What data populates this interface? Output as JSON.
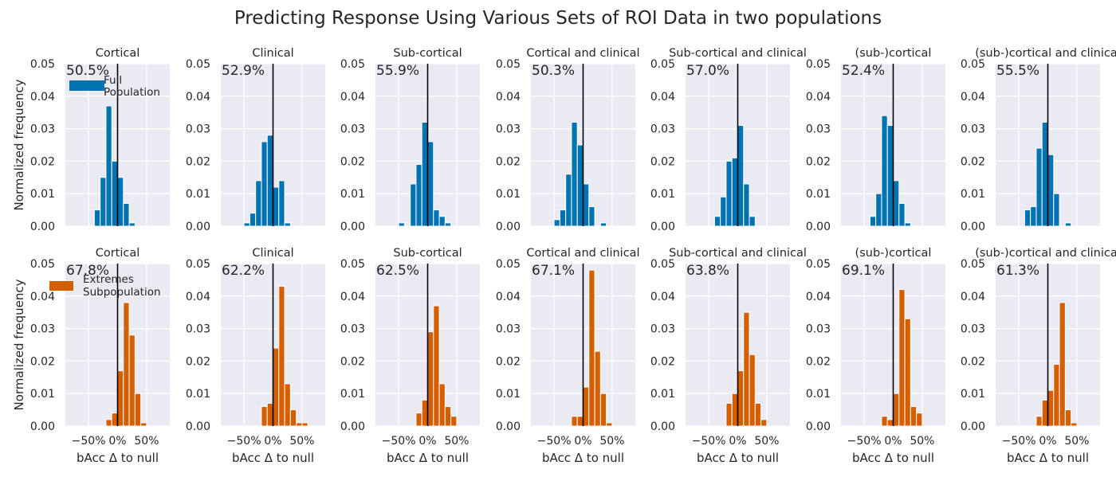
{
  "figure": {
    "title": "Predicting Response Using Various Sets of ROI Data in two populations"
  },
  "colors": {
    "background": "#eaeaf2",
    "grid": "#ffffff",
    "full_population": "#0173b2",
    "extremes_subpopulation": "#d55e00",
    "null_line": "#000000",
    "text": "#262626"
  },
  "chart_data": [
    {
      "type": "bar",
      "row": "Full Population",
      "title": "Cortical",
      "accuracy_label": "50.5%",
      "legend_entry": "Full Population",
      "ylabel": "Normalized frequency",
      "xlabel": "",
      "ylim": [
        0,
        0.05
      ],
      "xlim": [
        -90,
        90
      ],
      "yticks": [
        "0.00",
        "0.01",
        "0.02",
        "0.03",
        "0.04",
        "0.05"
      ],
      "xticks": [],
      "null_line_x": 0,
      "bins": [
        {
          "x0": -40,
          "x1": -30,
          "v": 0.005
        },
        {
          "x0": -30,
          "x1": -20,
          "v": 0.015
        },
        {
          "x0": -20,
          "x1": -10,
          "v": 0.037
        },
        {
          "x0": -10,
          "x1": 0,
          "v": 0.02
        },
        {
          "x0": 0,
          "x1": 10,
          "v": 0.015
        },
        {
          "x0": 10,
          "x1": 20,
          "v": 0.007
        },
        {
          "x0": 20,
          "x1": 30,
          "v": 0.001
        }
      ]
    },
    {
      "type": "bar",
      "row": "Full Population",
      "title": "Clinical",
      "accuracy_label": "52.9%",
      "ylim": [
        0,
        0.05
      ],
      "xlim": [
        -90,
        90
      ],
      "yticks": [
        "0.00",
        "0.01",
        "0.02",
        "0.03",
        "0.04",
        "0.05"
      ],
      "xticks": [],
      "null_line_x": 0,
      "bins": [
        {
          "x0": -50,
          "x1": -40,
          "v": 0.001
        },
        {
          "x0": -40,
          "x1": -30,
          "v": 0.004
        },
        {
          "x0": -30,
          "x1": -20,
          "v": 0.014
        },
        {
          "x0": -20,
          "x1": -10,
          "v": 0.026
        },
        {
          "x0": -10,
          "x1": 0,
          "v": 0.028
        },
        {
          "x0": 0,
          "x1": 10,
          "v": 0.012
        },
        {
          "x0": 10,
          "x1": 20,
          "v": 0.014
        },
        {
          "x0": 20,
          "x1": 30,
          "v": 0.001
        }
      ]
    },
    {
      "type": "bar",
      "row": "Full Population",
      "title": "Sub-cortical",
      "accuracy_label": "55.9%",
      "ylim": [
        0,
        0.05
      ],
      "xlim": [
        -90,
        90
      ],
      "yticks": [
        "0.00",
        "0.01",
        "0.02",
        "0.03",
        "0.04",
        "0.05"
      ],
      "xticks": [],
      "null_line_x": 0,
      "bins": [
        {
          "x0": -50,
          "x1": -40,
          "v": 0.001
        },
        {
          "x0": -30,
          "x1": -20,
          "v": 0.013
        },
        {
          "x0": -20,
          "x1": -10,
          "v": 0.019
        },
        {
          "x0": -10,
          "x1": 0,
          "v": 0.032
        },
        {
          "x0": 0,
          "x1": 10,
          "v": 0.026
        },
        {
          "x0": 10,
          "x1": 20,
          "v": 0.005
        },
        {
          "x0": 20,
          "x1": 30,
          "v": 0.003
        },
        {
          "x0": 30,
          "x1": 40,
          "v": 0.001
        }
      ]
    },
    {
      "type": "bar",
      "row": "Full Population",
      "title": "Cortical and clinical",
      "accuracy_label": "50.3%",
      "ylim": [
        0,
        0.05
      ],
      "xlim": [
        -90,
        90
      ],
      "yticks": [
        "0.00",
        "0.01",
        "0.02",
        "0.03",
        "0.04",
        "0.05"
      ],
      "xticks": [],
      "null_line_x": 0,
      "bins": [
        {
          "x0": -50,
          "x1": -40,
          "v": 0.002
        },
        {
          "x0": -40,
          "x1": -30,
          "v": 0.005
        },
        {
          "x0": -30,
          "x1": -20,
          "v": 0.016
        },
        {
          "x0": -20,
          "x1": -10,
          "v": 0.032
        },
        {
          "x0": -10,
          "x1": 0,
          "v": 0.025
        },
        {
          "x0": 0,
          "x1": 10,
          "v": 0.013
        },
        {
          "x0": 10,
          "x1": 20,
          "v": 0.006
        },
        {
          "x0": 30,
          "x1": 40,
          "v": 0.001
        }
      ]
    },
    {
      "type": "bar",
      "row": "Full Population",
      "title": "Sub-cortical and clinical",
      "accuracy_label": "57.0%",
      "ylim": [
        0,
        0.05
      ],
      "xlim": [
        -90,
        90
      ],
      "yticks": [
        "0.00",
        "0.01",
        "0.02",
        "0.03",
        "0.04",
        "0.05"
      ],
      "xticks": [],
      "null_line_x": 0,
      "bins": [
        {
          "x0": -40,
          "x1": -30,
          "v": 0.003
        },
        {
          "x0": -30,
          "x1": -20,
          "v": 0.009
        },
        {
          "x0": -20,
          "x1": -10,
          "v": 0.02
        },
        {
          "x0": -10,
          "x1": 0,
          "v": 0.021
        },
        {
          "x0": 0,
          "x1": 10,
          "v": 0.031
        },
        {
          "x0": 10,
          "x1": 20,
          "v": 0.013
        },
        {
          "x0": 20,
          "x1": 30,
          "v": 0.003
        }
      ]
    },
    {
      "type": "bar",
      "row": "Full Population",
      "title": "(sub-)cortical",
      "accuracy_label": "52.4%",
      "ylim": [
        0,
        0.05
      ],
      "xlim": [
        -90,
        90
      ],
      "yticks": [
        "0.00",
        "0.01",
        "0.02",
        "0.03",
        "0.04",
        "0.05"
      ],
      "xticks": [],
      "null_line_x": 0,
      "bins": [
        {
          "x0": -40,
          "x1": -30,
          "v": 0.003
        },
        {
          "x0": -30,
          "x1": -20,
          "v": 0.01
        },
        {
          "x0": -20,
          "x1": -10,
          "v": 0.034
        },
        {
          "x0": -10,
          "x1": 0,
          "v": 0.031
        },
        {
          "x0": 0,
          "x1": 10,
          "v": 0.014
        },
        {
          "x0": 10,
          "x1": 20,
          "v": 0.007
        },
        {
          "x0": 20,
          "x1": 30,
          "v": 0.001
        }
      ]
    },
    {
      "type": "bar",
      "row": "Full Population",
      "title": "(sub-)cortical and clinical",
      "accuracy_label": "55.5%",
      "ylim": [
        0,
        0.05
      ],
      "xlim": [
        -90,
        90
      ],
      "yticks": [
        "0.00",
        "0.01",
        "0.02",
        "0.03",
        "0.04",
        "0.05"
      ],
      "xticks": [],
      "null_line_x": 0,
      "bins": [
        {
          "x0": -40,
          "x1": -30,
          "v": 0.005
        },
        {
          "x0": -30,
          "x1": -20,
          "v": 0.006
        },
        {
          "x0": -20,
          "x1": -10,
          "v": 0.024
        },
        {
          "x0": -10,
          "x1": 0,
          "v": 0.032
        },
        {
          "x0": 0,
          "x1": 10,
          "v": 0.022
        },
        {
          "x0": 10,
          "x1": 20,
          "v": 0.01
        },
        {
          "x0": 30,
          "x1": 40,
          "v": 0.001
        }
      ]
    },
    {
      "type": "bar",
      "row": "Extremes Subpopulation",
      "title": "Cortical",
      "accuracy_label": "67.8%",
      "legend_entry": "Extremes Subpopulation",
      "ylabel": "Normalized frequency",
      "xlabel": "bAcc Δ to null",
      "ylim": [
        0,
        0.05
      ],
      "xlim": [
        -90,
        90
      ],
      "yticks": [
        "0.00",
        "0.01",
        "0.02",
        "0.03",
        "0.04",
        "0.05"
      ],
      "xticks": [
        {
          "x": -50,
          "label": "−50%"
        },
        {
          "x": 0,
          "label": "0%"
        },
        {
          "x": 50,
          "label": "50%"
        }
      ],
      "null_line_x": 0,
      "bins": [
        {
          "x0": -20,
          "x1": -10,
          "v": 0.002
        },
        {
          "x0": -10,
          "x1": 0,
          "v": 0.004
        },
        {
          "x0": 0,
          "x1": 10,
          "v": 0.017
        },
        {
          "x0": 10,
          "x1": 20,
          "v": 0.038
        },
        {
          "x0": 20,
          "x1": 30,
          "v": 0.028
        },
        {
          "x0": 30,
          "x1": 40,
          "v": 0.01
        },
        {
          "x0": 40,
          "x1": 50,
          "v": 0.001
        }
      ]
    },
    {
      "type": "bar",
      "row": "Extremes Subpopulation",
      "title": "Clinical",
      "accuracy_label": "62.2%",
      "xlabel": "bAcc Δ to null",
      "ylim": [
        0,
        0.05
      ],
      "xlim": [
        -90,
        90
      ],
      "yticks": [
        "0.00",
        "0.01",
        "0.02",
        "0.03",
        "0.04",
        "0.05"
      ],
      "xticks": [
        {
          "x": -50,
          "label": "−50%"
        },
        {
          "x": 0,
          "label": "0%"
        },
        {
          "x": 50,
          "label": "50%"
        }
      ],
      "null_line_x": 0,
      "bins": [
        {
          "x0": -20,
          "x1": -10,
          "v": 0.006
        },
        {
          "x0": -10,
          "x1": 0,
          "v": 0.007
        },
        {
          "x0": 0,
          "x1": 10,
          "v": 0.024
        },
        {
          "x0": 10,
          "x1": 20,
          "v": 0.043
        },
        {
          "x0": 20,
          "x1": 30,
          "v": 0.013
        },
        {
          "x0": 30,
          "x1": 40,
          "v": 0.005
        },
        {
          "x0": 40,
          "x1": 50,
          "v": 0.001
        },
        {
          "x0": 50,
          "x1": 60,
          "v": 0.001
        }
      ]
    },
    {
      "type": "bar",
      "row": "Extremes Subpopulation",
      "title": "Sub-cortical",
      "accuracy_label": "62.5%",
      "xlabel": "bAcc Δ to null",
      "ylim": [
        0,
        0.05
      ],
      "xlim": [
        -90,
        90
      ],
      "yticks": [
        "0.00",
        "0.01",
        "0.02",
        "0.03",
        "0.04",
        "0.05"
      ],
      "xticks": [
        {
          "x": -50,
          "label": "−50%"
        },
        {
          "x": 0,
          "label": "0%"
        },
        {
          "x": 50,
          "label": "50%"
        }
      ],
      "null_line_x": 0,
      "bins": [
        {
          "x0": -20,
          "x1": -10,
          "v": 0.004
        },
        {
          "x0": -10,
          "x1": 0,
          "v": 0.008
        },
        {
          "x0": 0,
          "x1": 10,
          "v": 0.029
        },
        {
          "x0": 10,
          "x1": 20,
          "v": 0.037
        },
        {
          "x0": 20,
          "x1": 30,
          "v": 0.013
        },
        {
          "x0": 30,
          "x1": 40,
          "v": 0.006
        },
        {
          "x0": 40,
          "x1": 50,
          "v": 0.003
        }
      ]
    },
    {
      "type": "bar",
      "row": "Extremes Subpopulation",
      "title": "Cortical and clinical",
      "accuracy_label": "67.1%",
      "xlabel": "bAcc Δ to null",
      "ylim": [
        0,
        0.05
      ],
      "xlim": [
        -90,
        90
      ],
      "yticks": [
        "0.00",
        "0.01",
        "0.02",
        "0.03",
        "0.04",
        "0.05"
      ],
      "xticks": [
        {
          "x": -50,
          "label": "−50%"
        },
        {
          "x": 0,
          "label": "0%"
        },
        {
          "x": 50,
          "label": "50%"
        }
      ],
      "null_line_x": 0,
      "bins": [
        {
          "x0": -20,
          "x1": -10,
          "v": 0.003
        },
        {
          "x0": -10,
          "x1": 0,
          "v": 0.003
        },
        {
          "x0": 0,
          "x1": 10,
          "v": 0.012
        },
        {
          "x0": 10,
          "x1": 20,
          "v": 0.048
        },
        {
          "x0": 20,
          "x1": 30,
          "v": 0.023
        },
        {
          "x0": 30,
          "x1": 40,
          "v": 0.01
        },
        {
          "x0": 40,
          "x1": 50,
          "v": 0.001
        }
      ]
    },
    {
      "type": "bar",
      "row": "Extremes Subpopulation",
      "title": "Sub-cortical and clinical",
      "accuracy_label": "63.8%",
      "xlabel": "bAcc Δ to null",
      "ylim": [
        0,
        0.05
      ],
      "xlim": [
        -90,
        90
      ],
      "yticks": [
        "0.00",
        "0.01",
        "0.02",
        "0.03",
        "0.04",
        "0.05"
      ],
      "xticks": [
        {
          "x": -50,
          "label": "−50%"
        },
        {
          "x": 0,
          "label": "0%"
        },
        {
          "x": 50,
          "label": "50%"
        }
      ],
      "null_line_x": 0,
      "bins": [
        {
          "x0": -20,
          "x1": -10,
          "v": 0.007
        },
        {
          "x0": -10,
          "x1": 0,
          "v": 0.01
        },
        {
          "x0": 0,
          "x1": 10,
          "v": 0.017
        },
        {
          "x0": 10,
          "x1": 20,
          "v": 0.035
        },
        {
          "x0": 20,
          "x1": 30,
          "v": 0.022
        },
        {
          "x0": 30,
          "x1": 40,
          "v": 0.007
        },
        {
          "x0": 40,
          "x1": 50,
          "v": 0.002
        }
      ]
    },
    {
      "type": "bar",
      "row": "Extremes Subpopulation",
      "title": "(sub-)cortical",
      "accuracy_label": "69.1%",
      "xlabel": "bAcc Δ to null",
      "ylim": [
        0,
        0.05
      ],
      "xlim": [
        -90,
        90
      ],
      "yticks": [
        "0.00",
        "0.01",
        "0.02",
        "0.03",
        "0.04",
        "0.05"
      ],
      "xticks": [
        {
          "x": -50,
          "label": "−50%"
        },
        {
          "x": 0,
          "label": "0%"
        },
        {
          "x": 50,
          "label": "50%"
        }
      ],
      "null_line_x": 0,
      "bins": [
        {
          "x0": -20,
          "x1": -10,
          "v": 0.003
        },
        {
          "x0": -10,
          "x1": 0,
          "v": 0.002
        },
        {
          "x0": 0,
          "x1": 10,
          "v": 0.01
        },
        {
          "x0": 10,
          "x1": 20,
          "v": 0.042
        },
        {
          "x0": 20,
          "x1": 30,
          "v": 0.033
        },
        {
          "x0": 30,
          "x1": 40,
          "v": 0.006
        },
        {
          "x0": 40,
          "x1": 50,
          "v": 0.004
        }
      ]
    },
    {
      "type": "bar",
      "row": "Extremes Subpopulation",
      "title": "(sub-)cortical and clinical",
      "accuracy_label": "61.3%",
      "xlabel": "bAcc Δ to null",
      "ylim": [
        0,
        0.05
      ],
      "xlim": [
        -90,
        90
      ],
      "yticks": [
        "0.00",
        "0.01",
        "0.02",
        "0.03",
        "0.04",
        "0.05"
      ],
      "xticks": [
        {
          "x": -50,
          "label": "−50%"
        },
        {
          "x": 0,
          "label": "0%"
        },
        {
          "x": 50,
          "label": "50%"
        }
      ],
      "null_line_x": 0,
      "bins": [
        {
          "x0": -20,
          "x1": -10,
          "v": 0.003
        },
        {
          "x0": -10,
          "x1": 0,
          "v": 0.008
        },
        {
          "x0": 0,
          "x1": 10,
          "v": 0.011
        },
        {
          "x0": 10,
          "x1": 20,
          "v": 0.019
        },
        {
          "x0": 20,
          "x1": 30,
          "v": 0.038
        },
        {
          "x0": 30,
          "x1": 40,
          "v": 0.005
        },
        {
          "x0": 40,
          "x1": 50,
          "v": 0.001
        }
      ]
    }
  ]
}
